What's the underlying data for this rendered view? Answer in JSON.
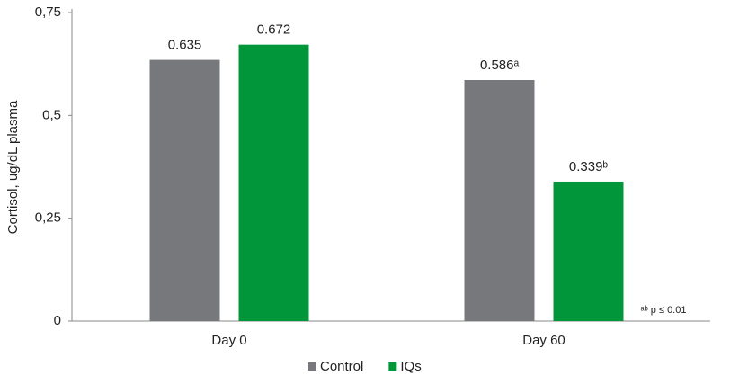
{
  "chart_data": {
    "type": "bar",
    "y_label": "Cortisol, ug/dL plasma",
    "categories": [
      "Day 0",
      "Day 60"
    ],
    "series": [
      {
        "name": "Control",
        "color": "#77787b",
        "values": [
          0.635,
          0.586
        ],
        "value_labels": [
          "0.635",
          "0.586ᵃ"
        ]
      },
      {
        "name": "IQs",
        "color": "#009639",
        "values": [
          0.672,
          0.339
        ],
        "value_labels": [
          "0.672",
          "0.339ᵇ"
        ]
      }
    ],
    "ylim": [
      0,
      0.75
    ],
    "yticks": [
      {
        "value": 0,
        "label": "0"
      },
      {
        "value": 0.25,
        "label": "0,25"
      },
      {
        "value": 0.5,
        "label": "0,5"
      },
      {
        "value": 0.75,
        "label": "0,75"
      }
    ],
    "annotation": "ᵃᵇ p ≤ 0.01",
    "grid": false
  }
}
